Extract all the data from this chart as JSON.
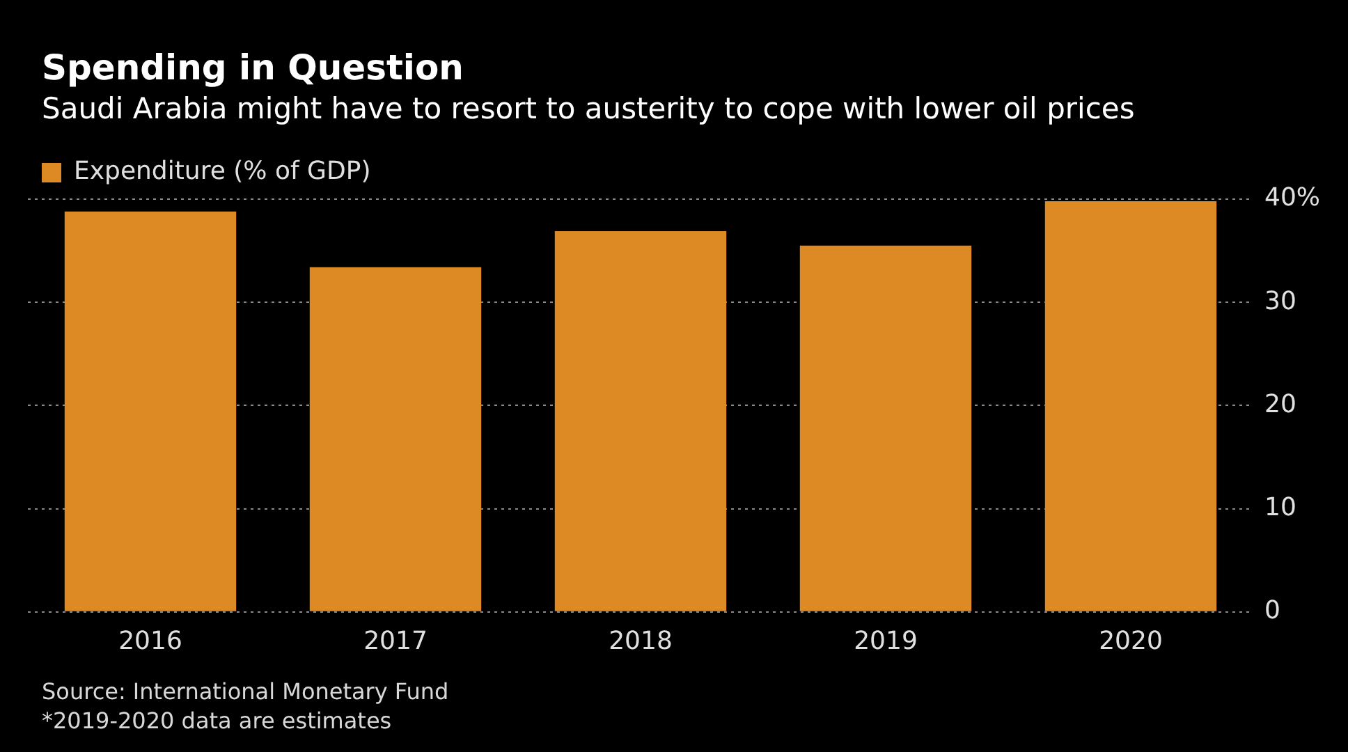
{
  "chart_data": {
    "type": "bar",
    "title": "Spending in Question",
    "subtitle": "Saudi Arabia might have to resort to austerity to cope with lower oil prices",
    "categories": [
      "2016",
      "2017",
      "2018",
      "2019",
      "2020"
    ],
    "series": [
      {
        "name": "Expenditure (% of GDP)",
        "color": "#dd8a25",
        "values": [
          38.8,
          33.4,
          36.9,
          35.5,
          39.8
        ]
      }
    ],
    "ylim": [
      0,
      40
    ],
    "yticks": [
      0,
      10,
      20,
      30,
      {
        "value": 40,
        "label": "40%"
      }
    ],
    "grid": "y",
    "legend": "top left",
    "annotations": [
      "Source: International Monetary Fund",
      "*2019-2020 data are estimates"
    ]
  }
}
